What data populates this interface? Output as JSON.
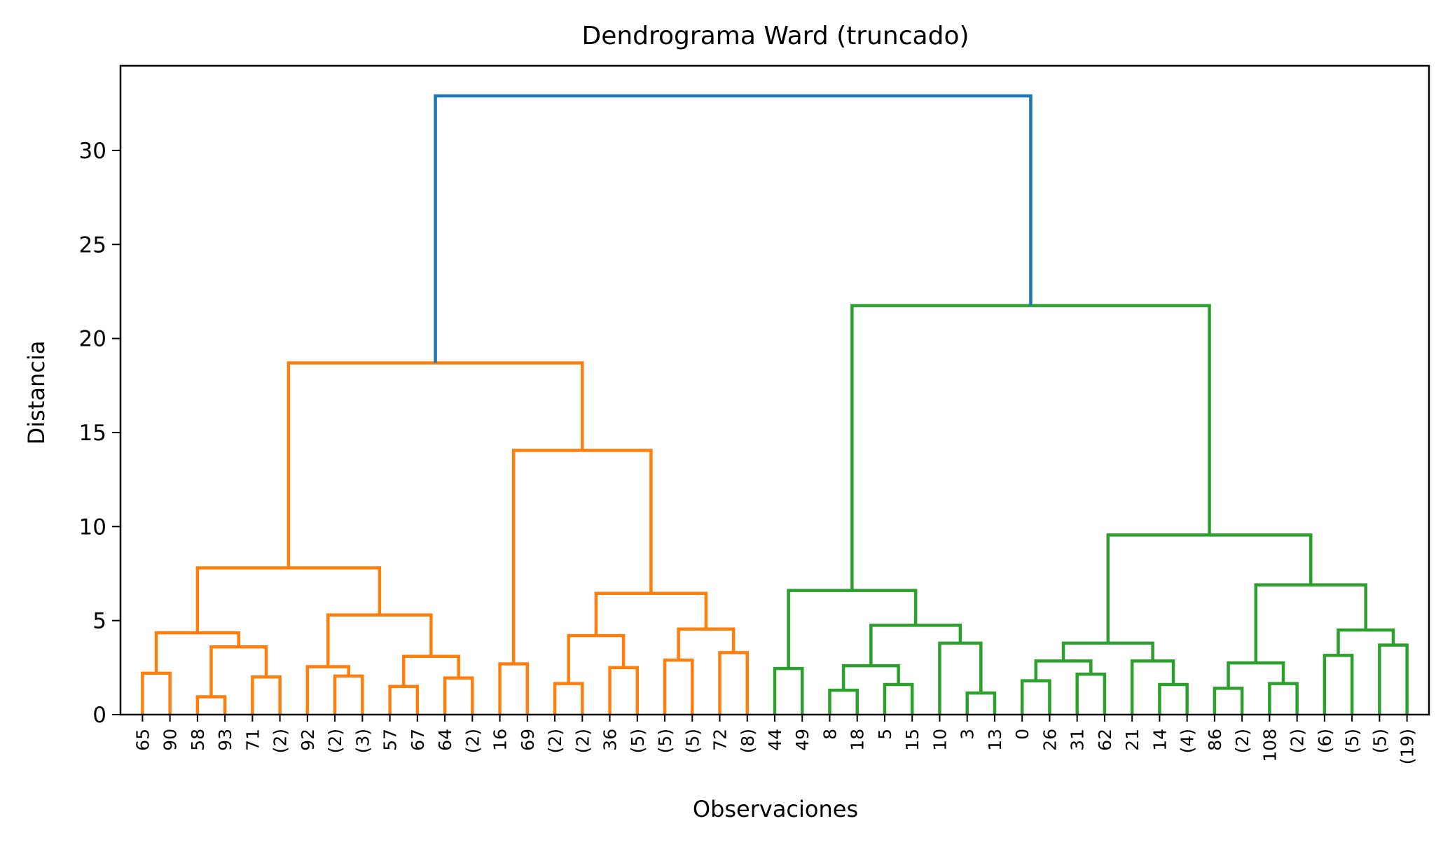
{
  "chart_data": {
    "type": "dendrogram",
    "title": "Dendrograma Ward (truncado)",
    "xlabel": "Observaciones",
    "ylabel": "Distancia",
    "ylim": [
      0,
      34.5
    ],
    "yticks": [
      0,
      5,
      10,
      15,
      20,
      25,
      30
    ],
    "grid": false,
    "leaves": [
      "65",
      "90",
      "58",
      "93",
      "71",
      "(2)",
      "92",
      "(2)",
      "(3)",
      "57",
      "67",
      "64",
      "(2)",
      "16",
      "69",
      "(2)",
      "(2)",
      "36",
      "(5)",
      "(5)",
      "(5)",
      "72",
      "(8)",
      "44",
      "49",
      "8",
      "18",
      "5",
      "15",
      "10",
      "3",
      "13",
      "0",
      "26",
      "31",
      "62",
      "21",
      "14",
      "(4)",
      "86",
      "(2)",
      "108",
      "(2)",
      "(6)",
      "(5)",
      "(5)",
      "(19)"
    ],
    "colors": {
      "above_threshold": "#1f77b4",
      "cluster_1": "#ff7f0e",
      "cluster_2": "#2ca02c"
    },
    "merges": [
      {
        "id": "n1",
        "left": "L0",
        "right": "L1",
        "height": 2.2,
        "color": "cluster_1"
      },
      {
        "id": "n2",
        "left": "L2",
        "right": "L3",
        "height": 0.95,
        "color": "cluster_1"
      },
      {
        "id": "n3",
        "left": "L4",
        "right": "L5",
        "height": 2.0,
        "color": "cluster_1"
      },
      {
        "id": "n4",
        "left": "n2",
        "right": "n3",
        "height": 3.6,
        "color": "cluster_1"
      },
      {
        "id": "n5",
        "left": "n1",
        "right": "n4",
        "height": 4.35,
        "color": "cluster_1"
      },
      {
        "id": "n6",
        "left": "L7",
        "right": "L8",
        "height": 2.05,
        "color": "cluster_1"
      },
      {
        "id": "n7",
        "left": "L6",
        "right": "n6",
        "height": 2.55,
        "color": "cluster_1"
      },
      {
        "id": "n8",
        "left": "L9",
        "right": "L10",
        "height": 1.5,
        "color": "cluster_1"
      },
      {
        "id": "n9",
        "left": "L11",
        "right": "L12",
        "height": 1.95,
        "color": "cluster_1"
      },
      {
        "id": "n10",
        "left": "n8",
        "right": "n9",
        "height": 3.1,
        "color": "cluster_1"
      },
      {
        "id": "n11",
        "left": "n7",
        "right": "n10",
        "height": 5.3,
        "color": "cluster_1"
      },
      {
        "id": "n12",
        "left": "n5",
        "right": "n11",
        "height": 7.8,
        "color": "cluster_1"
      },
      {
        "id": "n13",
        "left": "L13",
        "right": "L14",
        "height": 2.7,
        "color": "cluster_1"
      },
      {
        "id": "n14",
        "left": "L15",
        "right": "L16",
        "height": 1.65,
        "color": "cluster_1"
      },
      {
        "id": "n15",
        "left": "L17",
        "right": "L18",
        "height": 2.5,
        "color": "cluster_1"
      },
      {
        "id": "n16",
        "left": "n14",
        "right": "n15",
        "height": 4.2,
        "color": "cluster_1"
      },
      {
        "id": "n17",
        "left": "L19",
        "right": "L20",
        "height": 2.9,
        "color": "cluster_1"
      },
      {
        "id": "n18",
        "left": "L21",
        "right": "L22",
        "height": 3.3,
        "color": "cluster_1"
      },
      {
        "id": "n19",
        "left": "n17",
        "right": "n18",
        "height": 4.55,
        "color": "cluster_1"
      },
      {
        "id": "n20",
        "left": "n16",
        "right": "n19",
        "height": 6.45,
        "color": "cluster_1"
      },
      {
        "id": "n21",
        "left": "n13",
        "right": "n20",
        "height": 14.05,
        "color": "cluster_1"
      },
      {
        "id": "n22",
        "left": "n12",
        "right": "n21",
        "height": 18.7,
        "color": "cluster_1"
      },
      {
        "id": "n23",
        "left": "L23",
        "right": "L24",
        "height": 2.45,
        "color": "cluster_2"
      },
      {
        "id": "n24",
        "left": "L25",
        "right": "L26",
        "height": 1.3,
        "color": "cluster_2"
      },
      {
        "id": "n25",
        "left": "L27",
        "right": "L28",
        "height": 1.6,
        "color": "cluster_2"
      },
      {
        "id": "n26",
        "left": "n24",
        "right": "n25",
        "height": 2.6,
        "color": "cluster_2"
      },
      {
        "id": "n27",
        "left": "L30",
        "right": "L31",
        "height": 1.15,
        "color": "cluster_2"
      },
      {
        "id": "n28",
        "left": "L29",
        "right": "n27",
        "height": 3.8,
        "color": "cluster_2"
      },
      {
        "id": "n29",
        "left": "n26",
        "right": "n28",
        "height": 4.75,
        "color": "cluster_2"
      },
      {
        "id": "n30",
        "left": "n23",
        "right": "n29",
        "height": 6.6,
        "color": "cluster_2"
      },
      {
        "id": "n31",
        "left": "L32",
        "right": "L33",
        "height": 1.8,
        "color": "cluster_2"
      },
      {
        "id": "n32",
        "left": "L34",
        "right": "L35",
        "height": 2.15,
        "color": "cluster_2"
      },
      {
        "id": "n33",
        "left": "n31",
        "right": "n32",
        "height": 2.85,
        "color": "cluster_2"
      },
      {
        "id": "n34",
        "left": "L37",
        "right": "L38",
        "height": 1.6,
        "color": "cluster_2"
      },
      {
        "id": "n35",
        "left": "L36",
        "right": "n34",
        "height": 2.85,
        "color": "cluster_2"
      },
      {
        "id": "n36",
        "left": "n33",
        "right": "n35",
        "height": 3.8,
        "color": "cluster_2"
      },
      {
        "id": "n37",
        "left": "L39",
        "right": "L40",
        "height": 1.4,
        "color": "cluster_2"
      },
      {
        "id": "n38",
        "left": "L41",
        "right": "L42",
        "height": 1.65,
        "color": "cluster_2"
      },
      {
        "id": "n39",
        "left": "n37",
        "right": "n38",
        "height": 2.75,
        "color": "cluster_2"
      },
      {
        "id": "n40",
        "left": "L43",
        "right": "L44",
        "height": 3.15,
        "color": "cluster_2"
      },
      {
        "id": "n41",
        "left": "L45",
        "right": "L46",
        "height": 3.7,
        "color": "cluster_2"
      },
      {
        "id": "n42",
        "left": "n40",
        "right": "n41",
        "height": 4.5,
        "color": "cluster_2"
      },
      {
        "id": "n43",
        "left": "n39",
        "right": "n42",
        "height": 6.9,
        "color": "cluster_2"
      },
      {
        "id": "n44",
        "left": "n36",
        "right": "n43",
        "height": 9.55,
        "color": "cluster_2"
      },
      {
        "id": "n45",
        "left": "n30",
        "right": "n44",
        "height": 21.75,
        "color": "cluster_2"
      },
      {
        "id": "n46",
        "left": "n22",
        "right": "n45",
        "height": 32.9,
        "color": "above_threshold"
      }
    ]
  }
}
